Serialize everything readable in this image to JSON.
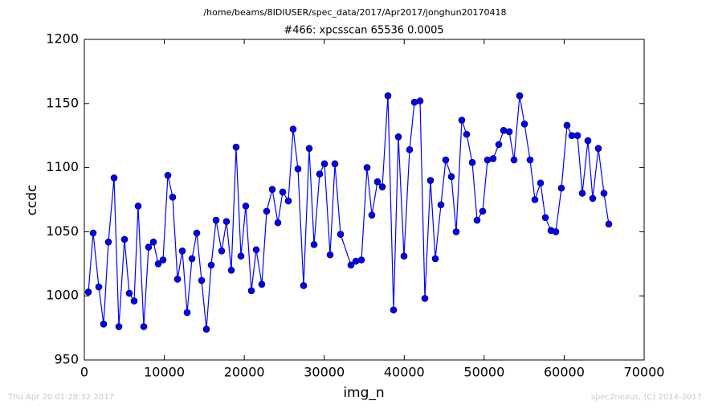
{
  "chart_data": {
    "type": "line",
    "header": "/home/beams/8IDIUSER/spec_data/2017/Apr2017/jonghun20170418",
    "title": "#466: xpcsscan 65536 0.0005",
    "x_label": "img_n",
    "y_label": "ccdc",
    "footer_left": "Thu Apr 20 01:28:32 2017",
    "footer_right": "spec2nexus, (C) 2014-2017",
    "xlim": [
      0,
      70000
    ],
    "ylim": [
      950,
      1200
    ],
    "xticks": [
      0,
      10000,
      20000,
      30000,
      40000,
      50000,
      60000,
      70000
    ],
    "yticks": [
      950,
      1000,
      1050,
      1100,
      1150,
      1200
    ],
    "x": [
      502,
      1105,
      1808,
      2410,
      3013,
      3716,
      4318,
      5021,
      5624,
      6227,
      6729,
      7432,
      8034,
      8637,
      9240,
      9842,
      10445,
      11047,
      11650,
      12252,
      12855,
      13458,
      14060,
      14663,
      15265,
      15868,
      16471,
      17174,
      17776,
      18379,
      18981,
      19584,
      20186,
      20889,
      21492,
      22195,
      22798,
      23501,
      24204,
      24806,
      25509,
      26112,
      26714,
      27417,
      28120,
      28723,
      29426,
      30029,
      30732,
      31334,
      32037,
      33343,
      33945,
      34648,
      35351,
      35954,
      36657,
      37260,
      37963,
      38666,
      39268,
      39971,
      40674,
      41277,
      41980,
      42582,
      43285,
      43888,
      44591,
      45193,
      45897,
      46499,
      47202,
      47805,
      48508,
      49110,
      49813,
      50416,
      51119,
      51822,
      52424,
      53127,
      53730,
      54433,
      55035,
      55739,
      56341,
      57044,
      57647,
      58350,
      58952,
      59655,
      60358,
      60961,
      61664,
      62266,
      62969,
      63572,
      64275,
      64978,
      65580
    ],
    "series": [
      {
        "color": "#0000ff",
        "values": [
          1003,
          1049,
          1007,
          978,
          1042,
          1092,
          976,
          1044,
          1002,
          996,
          1070,
          976,
          1038,
          1042,
          1025,
          1028,
          1094,
          1077,
          1013,
          1035,
          987,
          1029,
          1049,
          1012,
          974,
          1024,
          1059,
          1035,
          1058,
          1020,
          1116,
          1031,
          1070,
          1004,
          1036,
          1009,
          1066,
          1083,
          1057,
          1081,
          1074,
          1130,
          1099,
          1008,
          1115,
          1040,
          1095,
          1103,
          1032,
          1103,
          1048,
          1024,
          1027,
          1028,
          1100,
          1063,
          1089,
          1085,
          1156,
          989,
          1124,
          1031,
          1114,
          1151,
          1152,
          998,
          1090,
          1029,
          1071,
          1106,
          1093,
          1050,
          1137,
          1126,
          1104,
          1059,
          1066,
          1106,
          1107,
          1118,
          1129,
          1128,
          1106,
          1156,
          1134,
          1106,
          1075,
          1088,
          1061,
          1051,
          1050,
          1084,
          1133,
          1125,
          1125,
          1080,
          1121,
          1076,
          1115,
          1080,
          1056
        ]
      }
    ]
  }
}
